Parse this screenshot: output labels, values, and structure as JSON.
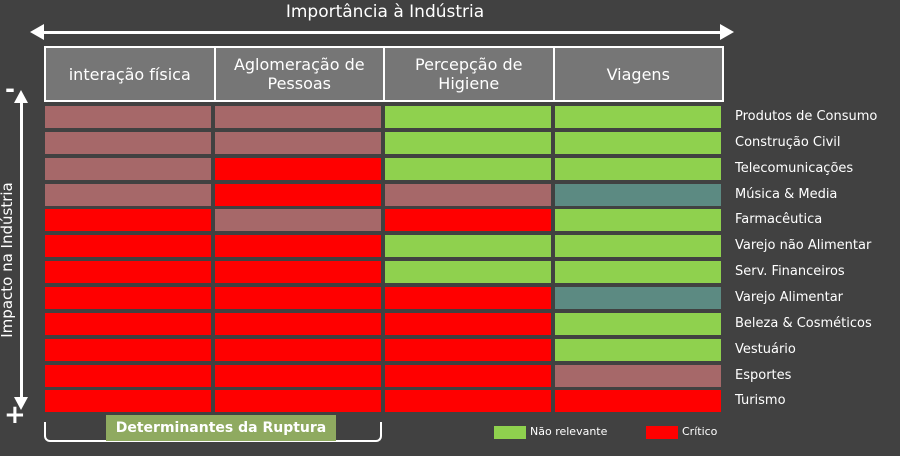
{
  "header": {
    "title": "Importância à Indústria",
    "columns": [
      "interação física",
      "Aglomeração de Pessoas",
      "Percepção de Higiene",
      "Viagens"
    ]
  },
  "axis": {
    "impact_label": "Impacto na Indústria",
    "top_sign": "-",
    "bottom_sign": "+"
  },
  "colors": {
    "critical": "#ff0000",
    "muted_red": "#a66869",
    "green": "#8fd14e",
    "teal": "#5c8a82"
  },
  "rows": [
    {
      "label": "Produtos de Consumo",
      "cells": [
        "muted_red",
        "muted_red",
        "green",
        "green"
      ]
    },
    {
      "label": "Construção Civil",
      "cells": [
        "muted_red",
        "muted_red",
        "green",
        "green"
      ]
    },
    {
      "label": "Telecomunicações",
      "cells": [
        "muted_red",
        "critical",
        "green",
        "green"
      ]
    },
    {
      "label": "Música & Media",
      "cells": [
        "muted_red",
        "critical",
        "muted_red",
        "teal"
      ]
    },
    {
      "label": "Farmacêutica",
      "cells": [
        "critical",
        "muted_red",
        "critical",
        "green"
      ]
    },
    {
      "label": "Varejo não Alimentar",
      "cells": [
        "critical",
        "critical",
        "green",
        "green"
      ]
    },
    {
      "label": "Serv. Financeiros",
      "cells": [
        "critical",
        "critical",
        "green",
        "green"
      ]
    },
    {
      "label": "Varejo Alimentar",
      "cells": [
        "critical",
        "critical",
        "critical",
        "teal"
      ]
    },
    {
      "label": "Beleza & Cosméticos",
      "cells": [
        "critical",
        "critical",
        "critical",
        "green"
      ]
    },
    {
      "label": "Vestuário",
      "cells": [
        "critical",
        "critical",
        "critical",
        "green"
      ]
    },
    {
      "label": "Esportes",
      "cells": [
        "critical",
        "critical",
        "critical",
        "muted_red"
      ]
    },
    {
      "label": "Turismo",
      "cells": [
        "critical",
        "critical",
        "critical",
        "critical"
      ]
    }
  ],
  "bracket": {
    "label": "Determinantes da Ruptura"
  },
  "legend": [
    {
      "label": "Não relevante",
      "color": "green"
    },
    {
      "label": "Crítico",
      "color": "critical"
    }
  ]
}
